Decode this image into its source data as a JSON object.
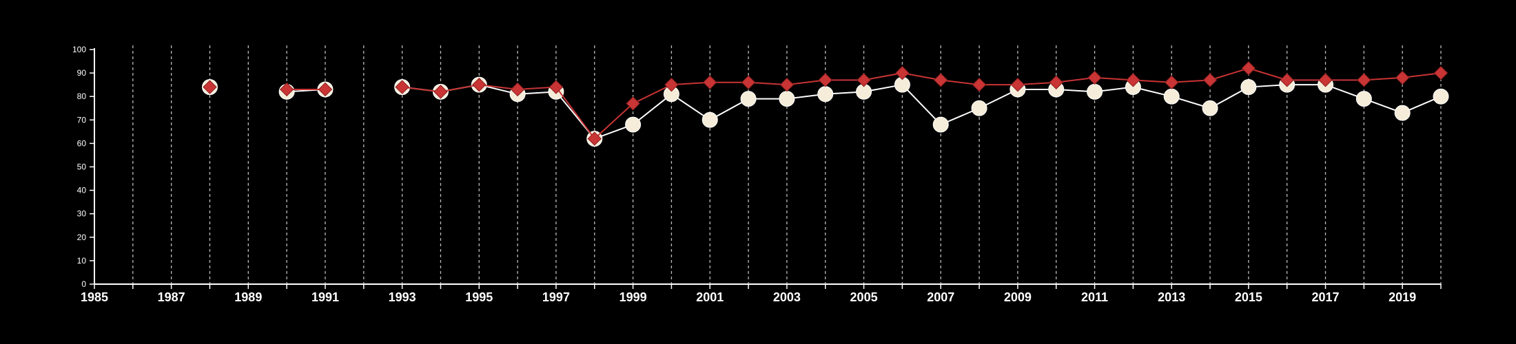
{
  "chart_data": {
    "type": "line",
    "title": "",
    "xlabel": "",
    "ylabel": "",
    "xlim": [
      1985,
      2020
    ],
    "ylim": [
      0,
      100
    ],
    "x_tick_labels": [
      "1985",
      "1987",
      "1989",
      "1991",
      "1993",
      "1995",
      "1997",
      "1999",
      "2001",
      "2003",
      "2005",
      "2007",
      "2009",
      "2011",
      "2013",
      "2015",
      "2017",
      "2019"
    ],
    "y_tick_labels": [
      "0",
      "10",
      "20",
      "30",
      "40",
      "50",
      "60",
      "70",
      "80",
      "90",
      "100"
    ],
    "grid": "vertical dashed lines at every year",
    "legend": "none",
    "series": [
      {
        "marker": "circle",
        "color": "#f5ecd9",
        "line_color": "#ffffff",
        "points": [
          [
            1988,
            84
          ],
          [
            1990,
            82
          ],
          [
            1991,
            83
          ],
          [
            1993,
            84
          ],
          [
            1994,
            82
          ],
          [
            1995,
            85
          ],
          [
            1996,
            81
          ],
          [
            1997,
            82
          ],
          [
            1998,
            62
          ],
          [
            1999,
            68
          ],
          [
            2000,
            81
          ],
          [
            2001,
            70
          ],
          [
            2002,
            79
          ],
          [
            2003,
            79
          ],
          [
            2004,
            81
          ],
          [
            2005,
            82
          ],
          [
            2006,
            85
          ],
          [
            2007,
            68
          ],
          [
            2008,
            75
          ],
          [
            2009,
            83
          ],
          [
            2010,
            83
          ],
          [
            2011,
            82
          ],
          [
            2012,
            84
          ],
          [
            2013,
            80
          ],
          [
            2014,
            75
          ],
          [
            2015,
            84
          ],
          [
            2016,
            85
          ],
          [
            2017,
            85
          ],
          [
            2018,
            79
          ],
          [
            2019,
            73
          ],
          [
            2020,
            80
          ]
        ]
      },
      {
        "marker": "diamond",
        "color": "#c93434",
        "line_color": "#c93434",
        "points": [
          [
            1988,
            84
          ],
          [
            1990,
            83
          ],
          [
            1991,
            83
          ],
          [
            1993,
            84
          ],
          [
            1994,
            82
          ],
          [
            1995,
            85
          ],
          [
            1996,
            83
          ],
          [
            1997,
            84
          ],
          [
            1998,
            62
          ],
          [
            1999,
            77
          ],
          [
            2000,
            85
          ],
          [
            2001,
            86
          ],
          [
            2002,
            86
          ],
          [
            2003,
            85
          ],
          [
            2004,
            87
          ],
          [
            2005,
            87
          ],
          [
            2006,
            90
          ],
          [
            2007,
            87
          ],
          [
            2008,
            85
          ],
          [
            2009,
            85
          ],
          [
            2010,
            86
          ],
          [
            2011,
            88
          ],
          [
            2012,
            87
          ],
          [
            2013,
            86
          ],
          [
            2014,
            87
          ],
          [
            2015,
            92
          ],
          [
            2016,
            87
          ],
          [
            2017,
            87
          ],
          [
            2018,
            87
          ],
          [
            2019,
            88
          ],
          [
            2020,
            90
          ]
        ]
      }
    ]
  }
}
